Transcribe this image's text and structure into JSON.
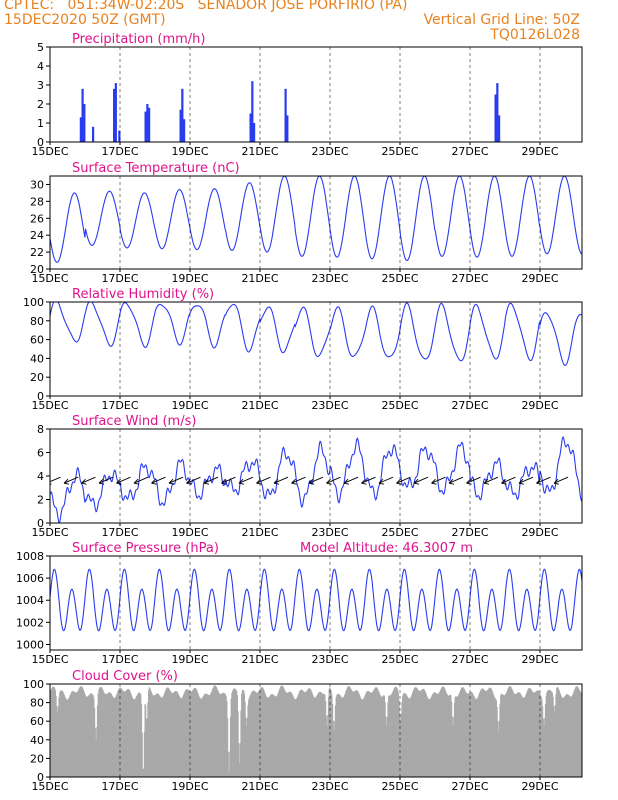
{
  "header": {
    "line1_left": "CPTEC:   051:34W-02:20S   SENADOR JOSE PORFIRIO (PA)",
    "line2_left": "15DEC2020 50Z (GMT)",
    "line2_right": "Vertical Grid Line: 50Z",
    "line3_right": "TQ0126L028"
  },
  "colors": {
    "header": "#e8821e",
    "panel_title": "#e0138c",
    "series": "#2a3cf0",
    "cloud": "#a9a9a9",
    "grid": "#000000"
  },
  "chart_data": [
    {
      "type": "bar",
      "title": "Precipitation (mm/h)",
      "ylim": [
        0,
        5
      ],
      "yticks": [
        0,
        1,
        2,
        3,
        4,
        5
      ],
      "x_tick_labels": [
        "15DEC",
        "17DEC",
        "19DEC",
        "21DEC",
        "23DEC",
        "25DEC",
        "27DEC",
        "29DEC"
      ],
      "x_start_label": "15DEC",
      "bars": [
        {
          "day": 0.85,
          "value": 1.3
        },
        {
          "day": 0.9,
          "value": 2.8
        },
        {
          "day": 0.95,
          "value": 2.0
        },
        {
          "day": 1.2,
          "value": 0.8
        },
        {
          "day": 1.8,
          "value": 2.8
        },
        {
          "day": 1.85,
          "value": 3.1
        },
        {
          "day": 1.95,
          "value": 0.6
        },
        {
          "day": 2.7,
          "value": 1.6
        },
        {
          "day": 2.75,
          "value": 2.0
        },
        {
          "day": 2.8,
          "value": 1.8
        },
        {
          "day": 3.7,
          "value": 1.7
        },
        {
          "day": 3.75,
          "value": 2.8
        },
        {
          "day": 3.8,
          "value": 1.2
        },
        {
          "day": 5.7,
          "value": 1.5
        },
        {
          "day": 5.75,
          "value": 3.2
        },
        {
          "day": 5.8,
          "value": 1.0
        },
        {
          "day": 6.7,
          "value": 2.8
        },
        {
          "day": 6.75,
          "value": 1.4
        },
        {
          "day": 12.7,
          "value": 2.5
        },
        {
          "day": 12.75,
          "value": 3.1
        },
        {
          "day": 12.8,
          "value": 1.4
        }
      ]
    },
    {
      "type": "line",
      "title": "Surface Temperature (nC)",
      "ylim": [
        20,
        31
      ],
      "yticks": [
        20,
        22,
        24,
        26,
        28,
        30
      ],
      "x_tick_labels": [
        "15DEC",
        "17DEC",
        "19DEC",
        "21DEC",
        "23DEC",
        "25DEC",
        "27DEC",
        "29DEC"
      ],
      "daily_max": [
        29.0,
        29.2,
        29.0,
        29.4,
        29.5,
        30.2,
        31.0,
        31.0,
        31.0,
        31.0,
        31.0,
        31.0,
        31.0,
        31.0,
        31.0
      ],
      "daily_min": [
        20.8,
        22.8,
        22.5,
        22.4,
        22.3,
        22.2,
        22.0,
        21.5,
        21.4,
        21.2,
        21.0,
        21.5,
        21.4,
        21.5,
        21.8
      ]
    },
    {
      "type": "line",
      "title": "Relative Humidity (%)",
      "ylim": [
        0,
        100
      ],
      "yticks": [
        0,
        20,
        40,
        60,
        80,
        100
      ],
      "x_tick_labels": [
        "15DEC",
        "17DEC",
        "19DEC",
        "21DEC",
        "23DEC",
        "25DEC",
        "27DEC",
        "29DEC"
      ],
      "daily_max": [
        100,
        100,
        100,
        100,
        100,
        100,
        95,
        93,
        92,
        92,
        95,
        95,
        95,
        98,
        90
      ],
      "daily_min": [
        58,
        55,
        55,
        58,
        55,
        50,
        48,
        42,
        40,
        38,
        36,
        36,
        40,
        40,
        36
      ]
    },
    {
      "type": "line",
      "title": "Surface Wind (m/s)",
      "ylim": [
        0,
        8
      ],
      "yticks": [
        0,
        2,
        4,
        6,
        8
      ],
      "x_tick_labels": [
        "15DEC",
        "17DEC",
        "19DEC",
        "21DEC",
        "23DEC",
        "25DEC",
        "27DEC",
        "29DEC"
      ],
      "daily_max": [
        4.0,
        4.2,
        4.8,
        5.0,
        4.5,
        5.2,
        6.0,
        6.2,
        6.5,
        6.4,
        6.3,
        6.4,
        5.0,
        4.8,
        7.0
      ],
      "daily_min": [
        0.8,
        1.5,
        2.0,
        1.8,
        2.5,
        2.8,
        2.2,
        2.0,
        2.5,
        2.5,
        3.0,
        2.8,
        2.5,
        2.5,
        2.5
      ],
      "arrows_per_day": 2
    },
    {
      "type": "line",
      "title": "Surface Pressure (hPa)",
      "annotation": "Model Altitude: 46.3007 m",
      "ylim": [
        999.5,
        1008
      ],
      "yticks": [
        1000,
        1002,
        1004,
        1006,
        1008
      ],
      "x_tick_labels": [
        "15DEC",
        "17DEC",
        "19DEC",
        "21DEC",
        "23DEC",
        "25DEC",
        "27DEC",
        "29DEC"
      ],
      "mean": 1003.6,
      "semidiurnal_amplitude": 2.3
    },
    {
      "type": "area",
      "title": "Cloud Cover (%)",
      "ylim": [
        0,
        100
      ],
      "yticks": [
        0,
        20,
        40,
        60,
        80,
        100
      ],
      "x_tick_labels": [
        "15DEC",
        "17DEC",
        "19DEC",
        "21DEC",
        "23DEC",
        "25DEC",
        "27DEC",
        "29DEC"
      ],
      "typical": 92,
      "dips": [
        {
          "day": 0.2,
          "value": 70
        },
        {
          "day": 1.3,
          "value": 40
        },
        {
          "day": 2.65,
          "value": 2
        },
        {
          "day": 2.75,
          "value": 60
        },
        {
          "day": 5.1,
          "value": 5
        },
        {
          "day": 5.4,
          "value": 15
        },
        {
          "day": 5.6,
          "value": 55
        },
        {
          "day": 7.9,
          "value": 55
        },
        {
          "day": 8.1,
          "value": 50
        },
        {
          "day": 9.6,
          "value": 55
        },
        {
          "day": 10.0,
          "value": 60
        },
        {
          "day": 11.5,
          "value": 55
        },
        {
          "day": 12.8,
          "value": 50
        },
        {
          "day": 14.1,
          "value": 55
        },
        {
          "day": 14.4,
          "value": 70
        }
      ]
    }
  ]
}
